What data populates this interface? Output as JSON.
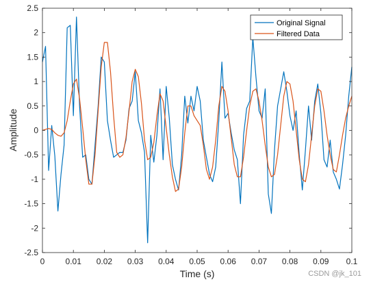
{
  "chart_data": {
    "type": "line",
    "title": "",
    "xlabel": "Time (s)",
    "ylabel": "Amplitude",
    "xlim": [
      0,
      0.1
    ],
    "ylim": [
      -2.5,
      2.5
    ],
    "xticks": [
      0,
      0.01,
      0.02,
      0.03,
      0.04,
      0.05,
      0.06,
      0.07,
      0.08,
      0.09,
      0.1
    ],
    "xtick_labels": [
      "0",
      "0.01",
      "0.02",
      "0.03",
      "0.04",
      "0.05",
      "0.06",
      "0.07",
      "0.08",
      "0.09",
      "0.1"
    ],
    "yticks": [
      -2.5,
      -2,
      -1.5,
      -1,
      -0.5,
      0,
      0.5,
      1,
      1.5,
      2,
      2.5
    ],
    "ytick_labels": [
      "-2.5",
      "-2",
      "-1.5",
      "-1",
      "-0.5",
      "0",
      "0.5",
      "1",
      "1.5",
      "2",
      "2.5"
    ],
    "grid": false,
    "legend_position": "top-right",
    "series": [
      {
        "name": "Original Signal",
        "color": "#0072BD",
        "x": [
          0,
          0.001,
          0.002,
          0.003,
          0.004,
          0.005,
          0.006,
          0.007,
          0.008,
          0.009,
          0.01,
          0.011,
          0.012,
          0.013,
          0.014,
          0.015,
          0.016,
          0.017,
          0.018,
          0.019,
          0.02,
          0.021,
          0.022,
          0.023,
          0.024,
          0.025,
          0.026,
          0.027,
          0.028,
          0.029,
          0.03,
          0.031,
          0.032,
          0.033,
          0.034,
          0.035,
          0.036,
          0.037,
          0.038,
          0.039,
          0.04,
          0.041,
          0.042,
          0.043,
          0.044,
          0.045,
          0.046,
          0.047,
          0.048,
          0.049,
          0.05,
          0.051,
          0.052,
          0.053,
          0.054,
          0.055,
          0.056,
          0.057,
          0.058,
          0.059,
          0.06,
          0.061,
          0.062,
          0.063,
          0.064,
          0.065,
          0.066,
          0.067,
          0.068,
          0.069,
          0.07,
          0.071,
          0.072,
          0.073,
          0.074,
          0.075,
          0.076,
          0.077,
          0.078,
          0.079,
          0.08,
          0.081,
          0.082,
          0.083,
          0.084,
          0.085,
          0.086,
          0.087,
          0.088,
          0.089,
          0.09,
          0.091,
          0.092,
          0.093,
          0.094,
          0.095,
          0.096,
          0.097,
          0.098,
          0.099,
          0.1
        ],
        "values": [
          1.4,
          1.72,
          -0.82,
          0.1,
          -0.52,
          -1.65,
          -0.9,
          -0.3,
          2.1,
          2.15,
          0.3,
          2.32,
          0.5,
          -0.55,
          -0.5,
          -1.0,
          -1.1,
          -0.3,
          0.5,
          1.5,
          1.4,
          0.2,
          -0.2,
          -0.55,
          -0.5,
          -0.45,
          -0.45,
          -0.2,
          0.45,
          0.6,
          1.2,
          0.2,
          -0.05,
          -0.45,
          -2.3,
          -0.1,
          -0.65,
          -0.1,
          0.85,
          -0.6,
          0.9,
          0.25,
          -0.7,
          -1.0,
          -1.22,
          -0.5,
          0.7,
          0.15,
          0.7,
          0.4,
          0.9,
          0.6,
          -0.2,
          -0.55,
          -0.9,
          -1.05,
          -0.75,
          0.2,
          1.4,
          0.25,
          0.35,
          -0.05,
          -0.4,
          -0.6,
          -1.5,
          -0.1,
          0.45,
          0.6,
          1.9,
          1.1,
          0.4,
          0.25,
          0.85,
          -1.3,
          -1.7,
          -0.4,
          0.5,
          0.85,
          1.2,
          0.8,
          0.3,
          0.0,
          0.4,
          -0.5,
          -1.22,
          -0.4,
          0.5,
          -0.2,
          0.6,
          0.95,
          0.35,
          -0.6,
          -0.75,
          -0.2,
          -0.85,
          -1.0,
          -1.2,
          -0.7,
          -0.1,
          0.7,
          1.3
        ]
      },
      {
        "name": "Filtered Data",
        "color": "#D95319",
        "x": [
          0,
          0.001,
          0.002,
          0.003,
          0.004,
          0.005,
          0.006,
          0.007,
          0.008,
          0.009,
          0.01,
          0.011,
          0.012,
          0.013,
          0.014,
          0.015,
          0.016,
          0.017,
          0.018,
          0.019,
          0.02,
          0.021,
          0.022,
          0.023,
          0.024,
          0.025,
          0.026,
          0.027,
          0.028,
          0.029,
          0.03,
          0.031,
          0.032,
          0.033,
          0.034,
          0.035,
          0.036,
          0.037,
          0.038,
          0.039,
          0.04,
          0.041,
          0.042,
          0.043,
          0.044,
          0.045,
          0.046,
          0.047,
          0.048,
          0.049,
          0.05,
          0.051,
          0.052,
          0.053,
          0.054,
          0.055,
          0.056,
          0.057,
          0.058,
          0.059,
          0.06,
          0.061,
          0.062,
          0.063,
          0.064,
          0.065,
          0.066,
          0.067,
          0.068,
          0.069,
          0.07,
          0.071,
          0.072,
          0.073,
          0.074,
          0.075,
          0.076,
          0.077,
          0.078,
          0.079,
          0.08,
          0.081,
          0.082,
          0.083,
          0.084,
          0.085,
          0.086,
          0.087,
          0.088,
          0.089,
          0.09,
          0.091,
          0.092,
          0.093,
          0.094,
          0.095,
          0.096,
          0.097,
          0.098,
          0.099,
          0.1
        ],
        "values": [
          0,
          0.02,
          0.04,
          0.02,
          -0.05,
          -0.1,
          -0.12,
          -0.05,
          0.2,
          0.6,
          0.95,
          1.05,
          0.65,
          0.05,
          -0.6,
          -1.1,
          -1.1,
          -0.5,
          0.4,
          1.3,
          1.8,
          1.8,
          1.2,
          0.3,
          -0.45,
          -0.55,
          -0.5,
          -0.15,
          0.4,
          1.0,
          1.25,
          1.1,
          0.55,
          -0.2,
          -0.6,
          -0.55,
          -0.25,
          0.3,
          0.75,
          0.6,
          0.05,
          -0.5,
          -0.95,
          -1.25,
          -1.2,
          -0.75,
          -0.05,
          0.5,
          0.5,
          0.3,
          0.2,
          0.1,
          -0.3,
          -0.8,
          -1.0,
          -0.75,
          -0.2,
          0.5,
          0.9,
          0.8,
          0.4,
          -0.15,
          -0.7,
          -0.95,
          -0.95,
          -0.55,
          0.0,
          0.5,
          0.8,
          0.85,
          0.6,
          0.2,
          -0.3,
          -0.75,
          -0.95,
          -0.9,
          -0.5,
          0.1,
          0.7,
          1.0,
          0.95,
          0.6,
          0.0,
          -0.6,
          -1.0,
          -1.05,
          -0.7,
          -0.1,
          0.5,
          0.85,
          0.8,
          0.4,
          -0.1,
          -0.5,
          -0.8,
          -0.85,
          -0.5,
          -0.1,
          0.25,
          0.5,
          0.7
        ]
      }
    ]
  },
  "watermark": "CSDN @jk_101"
}
